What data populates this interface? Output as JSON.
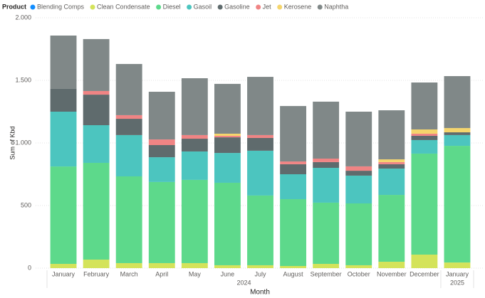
{
  "chart_data": {
    "type": "stacked_bar",
    "legend_title": "Product",
    "y_label": "Sum of Kbd",
    "x_label": "Month",
    "categories": [
      "January",
      "February",
      "March",
      "April",
      "May",
      "June",
      "July",
      "August",
      "September",
      "October",
      "November",
      "December",
      "January"
    ],
    "category_groups": [
      {
        "label": "2024",
        "count": 12
      },
      {
        "label": "2025",
        "count": 1
      }
    ],
    "series": [
      {
        "name": "Blending Comps",
        "color": "#118dff",
        "values": [
          0,
          0,
          0,
          0,
          0,
          0,
          0,
          0,
          0,
          0,
          0,
          0,
          0
        ]
      },
      {
        "name": "Clean Condensate",
        "color": "#d4e35a",
        "values": [
          34,
          68,
          40,
          40,
          40,
          23,
          23,
          17,
          34,
          23,
          51,
          108,
          45
        ]
      },
      {
        "name": "Diesel",
        "color": "#5dd98b",
        "values": [
          778,
          773,
          693,
          648,
          665,
          659,
          557,
          534,
          489,
          494,
          534,
          807,
          932
        ]
      },
      {
        "name": "Gasoil",
        "color": "#4cc5bf",
        "values": [
          438,
          301,
          330,
          198,
          227,
          238,
          358,
          199,
          278,
          222,
          210,
          108,
          86
        ]
      },
      {
        "name": "Gasoline",
        "color": "#5f6b6d",
        "values": [
          182,
          244,
          130,
          97,
          102,
          125,
          102,
          80,
          46,
          39,
          35,
          34,
          22
        ]
      },
      {
        "name": "Jet",
        "color": "#f08484",
        "values": [
          0,
          29,
          29,
          45,
          29,
          12,
          23,
          22,
          28,
          35,
          17,
          17,
          0
        ]
      },
      {
        "name": "Kerosene",
        "color": "#f5d56c",
        "values": [
          0,
          0,
          0,
          0,
          0,
          17,
          0,
          0,
          0,
          0,
          22,
          34,
          34
        ]
      },
      {
        "name": "Naphtha",
        "color": "#808888",
        "values": [
          426,
          415,
          409,
          381,
          454,
          398,
          465,
          443,
          455,
          437,
          392,
          375,
          415
        ]
      }
    ],
    "ylim": [
      0,
      2000
    ],
    "yticks": [
      0,
      500,
      {
        "value": 1000,
        "label": "1.000"
      },
      {
        "value": 1500,
        "label": "1.500"
      },
      {
        "value": 2000,
        "label": "2.000"
      }
    ],
    "grid": true
  }
}
